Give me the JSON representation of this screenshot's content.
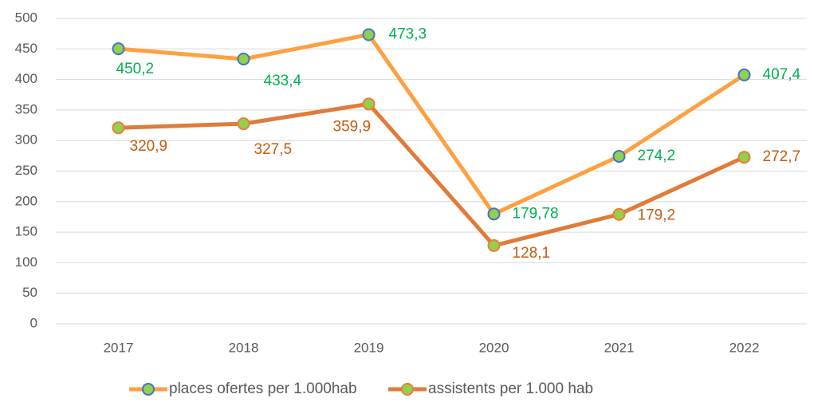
{
  "chart_data": {
    "type": "line",
    "categories": [
      "2017",
      "2018",
      "2019",
      "2020",
      "2021",
      "2022"
    ],
    "series": [
      {
        "name": "places ofertes per 1.000hab",
        "color": "#ffa040",
        "marker_stroke": "#4472c4",
        "marker_fill": "#92d050",
        "label_color": "#00b050",
        "values": [
          450.2,
          433.4,
          473.3,
          179.78,
          274.2,
          407.4
        ],
        "value_labels": [
          "450,2",
          "433,4",
          "473,3",
          "179,78",
          "274,2",
          "407,4"
        ]
      },
      {
        "name": "assistents per 1.000 hab",
        "color": "#e07b39",
        "marker_stroke": "#ed7d31",
        "marker_fill": "#92d050",
        "label_color": "#c55a11",
        "values": [
          320.9,
          327.5,
          359.9,
          128.1,
          179.2,
          272.7
        ],
        "value_labels": [
          "320,9",
          "327,5",
          "359,9",
          "128,1",
          "179,2",
          "272,7"
        ]
      }
    ],
    "ylim": [
      0,
      500
    ],
    "yticks": [
      0,
      50,
      100,
      150,
      200,
      250,
      300,
      350,
      400,
      450,
      500
    ],
    "grid": true,
    "legend": "bottom"
  }
}
